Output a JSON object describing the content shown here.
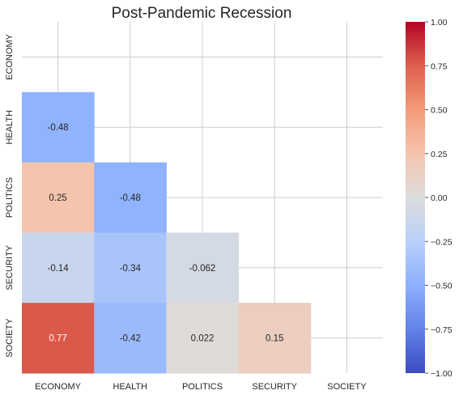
{
  "chart_data": {
    "type": "heatmap",
    "title": "Post-Pandemic Recession",
    "rows": [
      "ECONOMY",
      "HEALTH",
      "POLITICS",
      "SECURITY",
      "SOCIETY"
    ],
    "columns": [
      "ECONOMY",
      "HEALTH",
      "POLITICS",
      "SECURITY",
      "SOCIETY"
    ],
    "mask": "upper-triangle-including-diagonal",
    "cells": [
      {
        "row": "HEALTH",
        "col": "ECONOMY",
        "value": -0.48,
        "label": "-0.48"
      },
      {
        "row": "POLITICS",
        "col": "ECONOMY",
        "value": 0.25,
        "label": "0.25"
      },
      {
        "row": "POLITICS",
        "col": "HEALTH",
        "value": -0.48,
        "label": "-0.48"
      },
      {
        "row": "SECURITY",
        "col": "ECONOMY",
        "value": -0.14,
        "label": "-0.14"
      },
      {
        "row": "SECURITY",
        "col": "HEALTH",
        "value": -0.34,
        "label": "-0.34"
      },
      {
        "row": "SECURITY",
        "col": "POLITICS",
        "value": -0.062,
        "label": "-0.062"
      },
      {
        "row": "SOCIETY",
        "col": "ECONOMY",
        "value": 0.77,
        "label": "0.77"
      },
      {
        "row": "SOCIETY",
        "col": "HEALTH",
        "value": -0.42,
        "label": "-0.42"
      },
      {
        "row": "SOCIETY",
        "col": "POLITICS",
        "value": 0.022,
        "label": "0.022"
      },
      {
        "row": "SOCIETY",
        "col": "SECURITY",
        "value": 0.15,
        "label": "0.15"
      }
    ],
    "colormap": "coolwarm",
    "vmin": -1.0,
    "vmax": 1.0,
    "colorbar": {
      "placement": "right",
      "ticks": [
        1.0,
        0.75,
        0.5,
        0.25,
        0.0,
        -0.25,
        -0.5,
        -0.75,
        -1.0
      ],
      "tick_labels": [
        "1.00",
        "0.75",
        "0.50",
        "0.25",
        "0.00",
        "−0.25",
        "−0.50",
        "−0.75",
        "−1.00"
      ]
    },
    "grid": true
  }
}
